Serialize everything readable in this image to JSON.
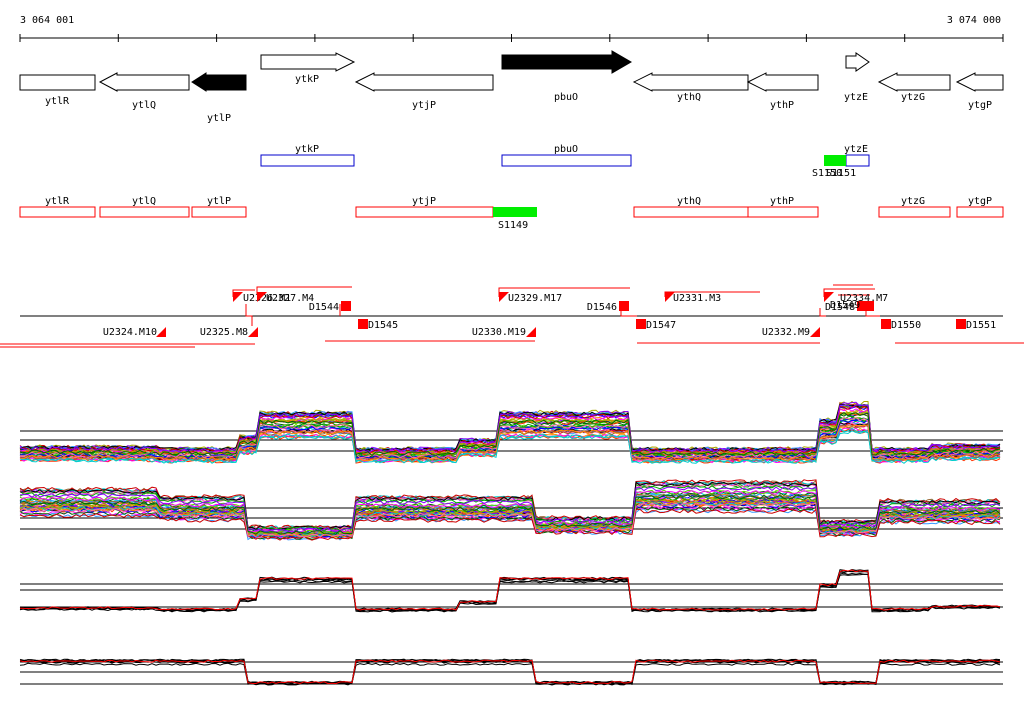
{
  "coords": {
    "start": "3 064 001",
    "end": "3 074 000"
  },
  "genes": [
    {
      "name": "ytlR",
      "strand": "-",
      "filled": false
    },
    {
      "name": "ytlQ",
      "strand": "-",
      "filled": false
    },
    {
      "name": "ytlP",
      "strand": "-",
      "filled": true
    },
    {
      "name": "ytkP",
      "strand": "+",
      "filled": false
    },
    {
      "name": "ytjP",
      "strand": "-",
      "filled": false
    },
    {
      "name": "pbuO",
      "strand": "+",
      "filled": true
    },
    {
      "name": "ythQ",
      "strand": "-",
      "filled": false
    },
    {
      "name": "ythP",
      "strand": "-",
      "filled": false
    },
    {
      "name": "ytzE",
      "strand": "+",
      "filled": false
    },
    {
      "name": "ytzG",
      "strand": "-",
      "filled": false
    },
    {
      "name": "ytgP",
      "strand": "-",
      "filled": false
    }
  ],
  "plus_boxes": [
    {
      "name": "ytkP"
    },
    {
      "name": "pbuO"
    },
    {
      "name": "ytzE"
    }
  ],
  "plus_segments": [
    {
      "label": "S1150"
    },
    {
      "label": "S1151"
    }
  ],
  "minus_boxes": [
    {
      "name": "ytlR"
    },
    {
      "name": "ytlQ"
    },
    {
      "name": "ytlP"
    },
    {
      "name": "ytjP"
    },
    {
      "name": "ythQ"
    },
    {
      "name": "ythP"
    },
    {
      "name": "ytzG"
    },
    {
      "name": "ytgP"
    }
  ],
  "minus_segments": [
    {
      "label": "S1149"
    }
  ],
  "upper_features": [
    {
      "label": "U2326.M1"
    },
    {
      "label": "U2327.M4"
    },
    {
      "label": "U2329.M17"
    },
    {
      "label": "U2331.M3"
    },
    {
      "label": "U2334.M7"
    },
    {
      "label": "D1544"
    },
    {
      "label": "D1546"
    },
    {
      "label": "D1548"
    },
    {
      "label": "D1549"
    }
  ],
  "lower_features": [
    {
      "label": "U2324.M10"
    },
    {
      "label": "U2325.M8"
    },
    {
      "label": "U2330.M19"
    },
    {
      "label": "U2332.M9"
    },
    {
      "label": "D1545"
    },
    {
      "label": "D1547"
    },
    {
      "label": "D1550"
    },
    {
      "label": "D1551"
    }
  ],
  "profile_palette": [
    "#ff00ff",
    "#00aa00",
    "#0000ff",
    "#ff8800",
    "#00cccc",
    "#cc0000",
    "#8800ff",
    "#aaaa00",
    "#ff66aa",
    "#006600",
    "#3399ff",
    "#996633",
    "#66cc00",
    "#ff3300",
    "#000000"
  ],
  "accent_red": "#ff0000",
  "accent_green": "#00ee00",
  "accent_blue": "#0000cc"
}
